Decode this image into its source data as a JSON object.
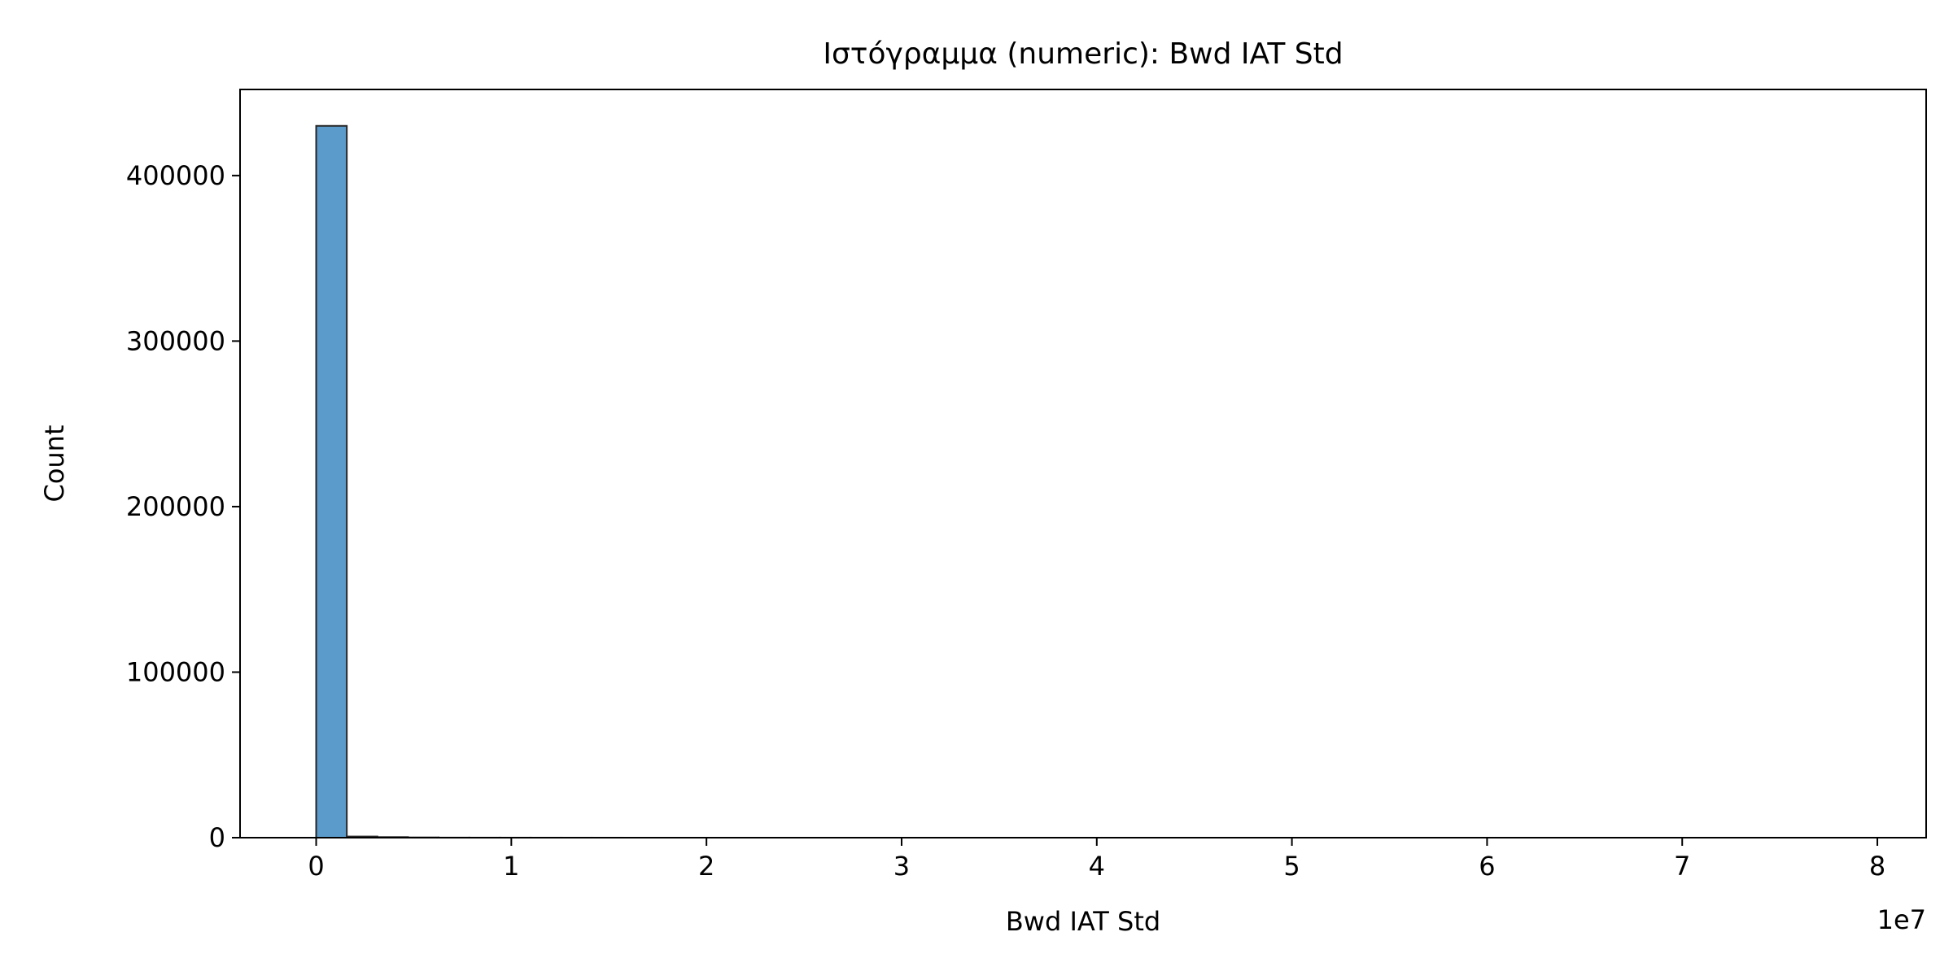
{
  "chart_data": {
    "type": "bar",
    "title": "Ιστόγραμμα (numeric): Bwd IAT Std",
    "xlabel": "Bwd IAT Std",
    "ylabel": "Count",
    "x_offset_label": "1e7",
    "xlim": [
      -0.39,
      8.25
    ],
    "ylim": [
      0,
      452000
    ],
    "x_ticks": [
      0,
      1,
      2,
      3,
      4,
      5,
      6,
      7,
      8
    ],
    "x_tick_labels": [
      "0",
      "1",
      "2",
      "3",
      "4",
      "5",
      "6",
      "7",
      "8"
    ],
    "y_ticks": [
      0,
      100000,
      200000,
      300000,
      400000
    ],
    "y_tick_labels": [
      "0",
      "100000",
      "200000",
      "300000",
      "400000"
    ],
    "bin_width": 0.157,
    "bins": [
      {
        "x0": 0.0,
        "count": 430000
      },
      {
        "x0": 0.157,
        "count": 700
      },
      {
        "x0": 0.314,
        "count": 350
      },
      {
        "x0": 0.471,
        "count": 150
      },
      {
        "x0": 0.628,
        "count": 60
      },
      {
        "x0": 0.785,
        "count": 40
      },
      {
        "x0": 0.942,
        "count": 30
      },
      {
        "x0": 1.099,
        "count": 20
      },
      {
        "x0": 1.256,
        "count": 15
      },
      {
        "x0": 1.413,
        "count": 10
      }
    ],
    "grid": false,
    "legend": "none",
    "bar_color": "#5b9bcb",
    "edge_color": "#262626"
  }
}
